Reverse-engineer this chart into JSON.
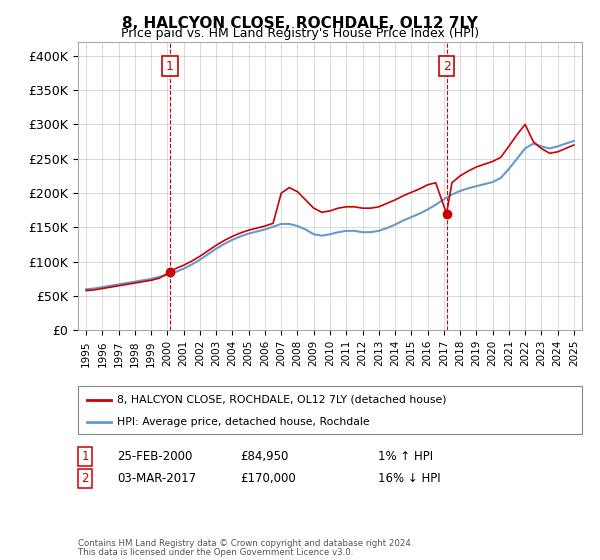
{
  "title": "8, HALCYON CLOSE, ROCHDALE, OL12 7LY",
  "subtitle": "Price paid vs. HM Land Registry's House Price Index (HPI)",
  "ylabel_vals": [
    0,
    50000,
    100000,
    150000,
    200000,
    250000,
    300000,
    350000,
    400000
  ],
  "ylabel_labels": [
    "£0",
    "£50K",
    "£100K",
    "£150K",
    "£200K",
    "£250K",
    "£300K",
    "£350K",
    "£400K"
  ],
  "ylim": [
    0,
    420000
  ],
  "xlim_start": 1994.5,
  "xlim_end": 2025.5,
  "point1_x": 2000.15,
  "point1_y": 84950,
  "point2_x": 2017.17,
  "point2_y": 170000,
  "point1_date": "25-FEB-2000",
  "point1_price": "£84,950",
  "point1_hpi": "1% ↑ HPI",
  "point2_date": "03-MAR-2017",
  "point2_price": "£170,000",
  "point2_hpi": "16% ↓ HPI",
  "legend_line1": "8, HALCYON CLOSE, ROCHDALE, OL12 7LY (detached house)",
  "legend_line2": "HPI: Average price, detached house, Rochdale",
  "footer1": "Contains HM Land Registry data © Crown copyright and database right 2024.",
  "footer2": "This data is licensed under the Open Government Licence v3.0.",
  "line_color_red": "#cc0000",
  "line_color_blue": "#6699cc",
  "bg_color": "#ffffff",
  "grid_color": "#cccccc",
  "hpi_years": [
    1995,
    1995.5,
    1996,
    1996.5,
    1997,
    1997.5,
    1998,
    1998.5,
    1999,
    1999.5,
    2000,
    2000.5,
    2001,
    2001.5,
    2002,
    2002.5,
    2003,
    2003.5,
    2004,
    2004.5,
    2005,
    2005.5,
    2006,
    2006.5,
    2007,
    2007.5,
    2008,
    2008.5,
    2009,
    2009.5,
    2010,
    2010.5,
    2011,
    2011.5,
    2012,
    2012.5,
    2013,
    2013.5,
    2014,
    2014.5,
    2015,
    2015.5,
    2016,
    2016.5,
    2017,
    2017.5,
    2018,
    2018.5,
    2019,
    2019.5,
    2020,
    2020.5,
    2021,
    2021.5,
    2022,
    2022.5,
    2023,
    2023.5,
    2024,
    2024.5,
    2025
  ],
  "hpi_values": [
    60000,
    61000,
    63000,
    65000,
    67000,
    69000,
    71000,
    73000,
    75000,
    78000,
    81000,
    85000,
    90000,
    96000,
    103000,
    111000,
    119000,
    126000,
    132000,
    137000,
    141000,
    144000,
    147000,
    151000,
    155000,
    155000,
    152000,
    147000,
    140000,
    138000,
    140000,
    143000,
    145000,
    145000,
    143000,
    143000,
    145000,
    149000,
    154000,
    160000,
    165000,
    170000,
    176000,
    183000,
    191000,
    198000,
    203000,
    207000,
    210000,
    213000,
    216000,
    222000,
    235000,
    250000,
    265000,
    272000,
    268000,
    265000,
    268000,
    272000,
    276000
  ],
  "red_years": [
    1995,
    1995.5,
    1996,
    1996.5,
    1997,
    1997.5,
    1998,
    1998.5,
    1999,
    1999.5,
    2000.15,
    2000.5,
    2001,
    2001.5,
    2002,
    2002.5,
    2003,
    2003.5,
    2004,
    2004.5,
    2005,
    2005.5,
    2006,
    2006.5,
    2007,
    2007.5,
    2008,
    2008.5,
    2009,
    2009.5,
    2010,
    2010.5,
    2011,
    2011.5,
    2012,
    2012.5,
    2013,
    2013.5,
    2014,
    2014.5,
    2015,
    2015.5,
    2016,
    2016.5,
    2017.17,
    2017.5,
    2018,
    2018.5,
    2019,
    2019.5,
    2020,
    2020.5,
    2021,
    2021.5,
    2022,
    2022.5,
    2023,
    2023.5,
    2024,
    2024.5,
    2025
  ],
  "red_values": [
    58000,
    59000,
    61000,
    63000,
    65000,
    67000,
    69000,
    71000,
    73000,
    76000,
    84950,
    90000,
    95000,
    101000,
    108000,
    116000,
    124000,
    131000,
    137000,
    142000,
    146000,
    149000,
    152000,
    156000,
    200000,
    208000,
    202000,
    190000,
    178000,
    172000,
    174000,
    178000,
    180000,
    180000,
    178000,
    178000,
    180000,
    185000,
    190000,
    196000,
    201000,
    206000,
    212000,
    215000,
    170000,
    215000,
    225000,
    232000,
    238000,
    242000,
    246000,
    252000,
    268000,
    285000,
    300000,
    275000,
    265000,
    258000,
    260000,
    265000,
    270000
  ]
}
